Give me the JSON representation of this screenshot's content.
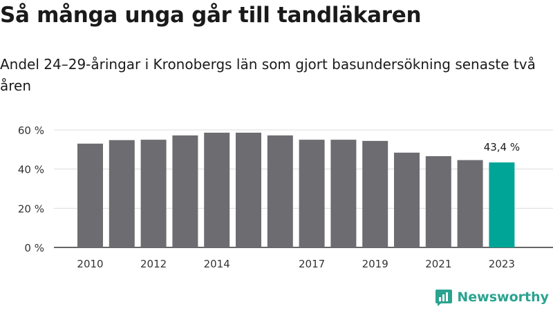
{
  "title": "Så många unga går till tandläkaren",
  "subtitle": "Andel 24–29-åringar i Kronobergs län som gjort basundersökning senaste två åren",
  "brand": {
    "name": "Newsworthy"
  },
  "colors": {
    "bar": "#6d6c71",
    "highlight": "#00a597",
    "axis": "#333333",
    "grid": "#dcdcdc",
    "brand": "#2aa38f"
  },
  "chart_data": {
    "type": "bar",
    "categories": [
      "2010",
      "2011",
      "2012",
      "2013",
      "2014",
      "2015",
      "2016",
      "2017",
      "2018",
      "2019",
      "2020",
      "2021",
      "2022",
      "2023"
    ],
    "values": [
      53,
      54.8,
      55,
      57.2,
      58.6,
      58.6,
      57.2,
      55,
      55,
      54.4,
      48.4,
      46.6,
      44.6,
      43.4
    ],
    "tick_labels_x": [
      "2010",
      "",
      "2012",
      "",
      "2014",
      "",
      "",
      "2017",
      "",
      "2019",
      "",
      "2021",
      "",
      "2023"
    ],
    "y_ticks": [
      "0 %",
      "20 %",
      "40 %",
      "60 %"
    ],
    "y_tick_values": [
      0,
      20,
      40,
      60
    ],
    "ylim": [
      0,
      60
    ],
    "grid": true,
    "highlight_index": 13,
    "annotation": "43,4 %"
  }
}
